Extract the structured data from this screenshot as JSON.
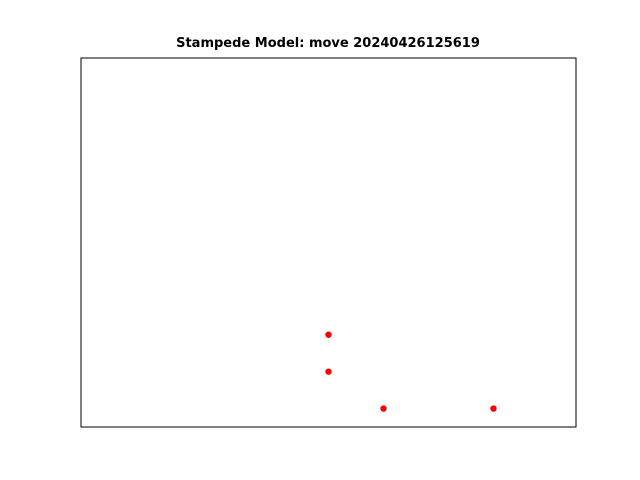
{
  "chart_data": {
    "type": "scatter",
    "title": "Stampede Model: move 20240426125619",
    "xlabel": "",
    "ylabel": "",
    "axes_visible": false,
    "ticks_visible": false,
    "grid": false,
    "xlim": [
      0,
      9
    ],
    "ylim": [
      0,
      10
    ],
    "series": [
      {
        "marker": "circle",
        "color": "#ff0000",
        "points": [
          {
            "x": 4.5,
            "y": 2.5
          },
          {
            "x": 4.5,
            "y": 1.5
          },
          {
            "x": 5.5,
            "y": 0.5
          },
          {
            "x": 7.5,
            "y": 0.5
          }
        ]
      }
    ]
  },
  "colors": {
    "background": "#ffffff",
    "axes_frame": "#000000",
    "marker": "#ff0000"
  }
}
